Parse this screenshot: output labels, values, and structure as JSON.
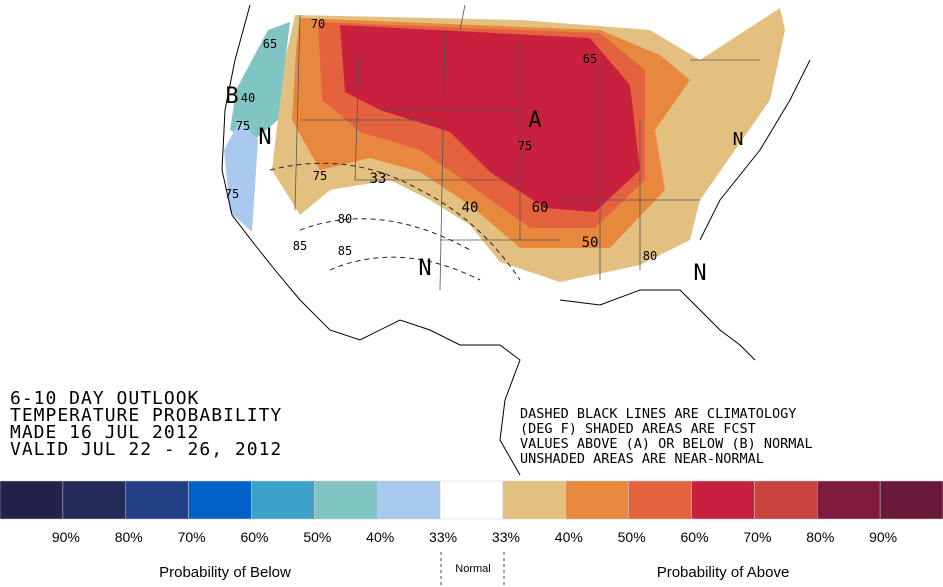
{
  "header": {
    "lines": [
      "6-10 DAY OUTLOOK",
      "TEMPERATURE PROBABILITY",
      "MADE 16 JUL 2012",
      "VALID  JUL 22 - 26, 2012"
    ]
  },
  "notes": {
    "lines": [
      "DASHED BLACK LINES ARE CLIMATOLOGY",
      "(DEG F) SHADED AREAS ARE FCST",
      "VALUES ABOVE (A) OR BELOW (B) NORMAL",
      "UNSHADED AREAS ARE NEAR-NORMAL"
    ]
  },
  "map": {
    "labels": [
      "A",
      "B",
      "N",
      "N",
      "N",
      "N",
      "40",
      "60",
      "50",
      "80",
      "33",
      "75",
      "75",
      "80",
      "85",
      "85",
      "65",
      "70",
      "65",
      "40",
      "75",
      "75"
    ]
  },
  "legend": {
    "colors": [
      "#22224a",
      "#242a58",
      "#233f88",
      "#0062c6",
      "#3ba1c8",
      "#80c5c3",
      "#a9c9ee",
      "#ffffff",
      "#e3c07f",
      "#e8883f",
      "#e5623f",
      "#c8203d",
      "#c9423f",
      "#7e1b3d",
      "#6a1837"
    ],
    "labels": [
      "90%",
      "80%",
      "70%",
      "60%",
      "50%",
      "40%",
      "33%",
      "33%",
      "40%",
      "50%",
      "60%",
      "70%",
      "80%",
      "90%"
    ],
    "below": "Probability of Below",
    "normal": "Normal",
    "above": "Probability of Above"
  }
}
